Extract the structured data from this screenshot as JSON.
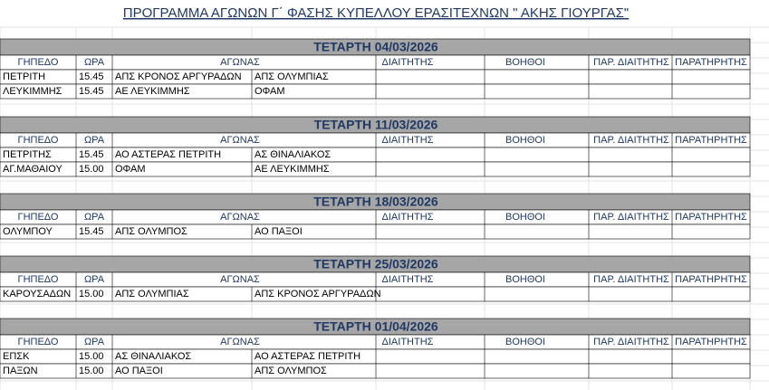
{
  "title": "ΠΡΟΓΡΑΜΜΑ ΑΓΩΝΩΝ Γ΄ ΦΑΣΗΣ ΚΥΠΕΛΛΟΥ ΕΡΑΣΙΤΕΧΝΩΝ \" ΑΚΗΣ ΓΙΟΥΡΓΑΣ\"",
  "columns": [
    "ΓΗΠΕΔΟ",
    "ΩΡΑ",
    "ΑΓΩΝΑΣ",
    "ΔΙΑΙΤΗΤΗΣ",
    "ΒΟΗΘΟΙ",
    "ΠΑΡ. ΔΙΑΙΤΗΤΗΣ",
    "ΠΑΡΑΤΗΡΗΤΗΣ"
  ],
  "sections": [
    {
      "date": "ΤΕΤΑΡΤΗ 04/03/2026",
      "rows": [
        [
          "ΠΕΤΡΙΤΗ",
          "15.45",
          "ΑΠΣ ΚΡΟΝΟΣ ΑΡΓΥΡΑΔΩΝ",
          "ΑΠΣ ΟΛΥΜΠΙΑΣ"
        ],
        [
          "ΛΕΥΚΙΜΜΗΣ",
          "15.45",
          "ΑΕ ΛΕΥΚΙΜΜΗΣ",
          "ΟΦΑΜ"
        ]
      ]
    },
    {
      "date": "ΤΕΤΑΡΤΗ 11/03/2026",
      "rows": [
        [
          "ΠΕΤΡΙΤΗΣ",
          "15.45",
          "ΑΟ ΑΣΤΕΡΑΣ ΠΕΤΡΙΤΗ",
          "ΑΣ ΘΙΝΑΛΙΑΚΟΣ"
        ],
        [
          "ΑΓ.ΜΑΘΑΙΟΥ",
          "15.00",
          "ΟΦΑΜ",
          "ΑΕ ΛΕΥΚΙΜΜΗΣ"
        ]
      ]
    },
    {
      "date": "ΤΕΤΑΡΤΗ 18/03/2026",
      "rows": [
        [
          "ΟΛΥΜΠΟΥ",
          "15.45",
          "ΑΠΣ ΟΛΥΜΠΟΣ",
          "ΑΟ ΠΑΞΟΙ"
        ]
      ]
    },
    {
      "date": "ΤΕΤΑΡΤΗ 25/03/2026",
      "rows": [
        [
          "ΚΑΡΟΥΣΑΔΩΝ",
          "15.00",
          "ΑΠΣ ΟΛΥΜΠΙΑΣ",
          "ΑΠΣ ΚΡΟΝΟΣ ΑΡΓΥΡΑΔΩΝ"
        ]
      ]
    },
    {
      "date": "ΤΕΤΑΡΤΗ 01/04/2026",
      "rows": [
        [
          "ΕΠΣΚ",
          "15.00",
          "ΑΣ ΘΙΝΑΛΙΑΚΟΣ",
          "ΑΟ ΑΣΤΕΡΑΣ ΠΕΤΡΙΤΗ"
        ],
        [
          "ΠΑΞΩΝ",
          "15.00",
          "ΑΟ ΠΑΞΟΙ",
          "ΑΠΣ ΟΛΥΜΠΟΣ"
        ]
      ]
    }
  ]
}
